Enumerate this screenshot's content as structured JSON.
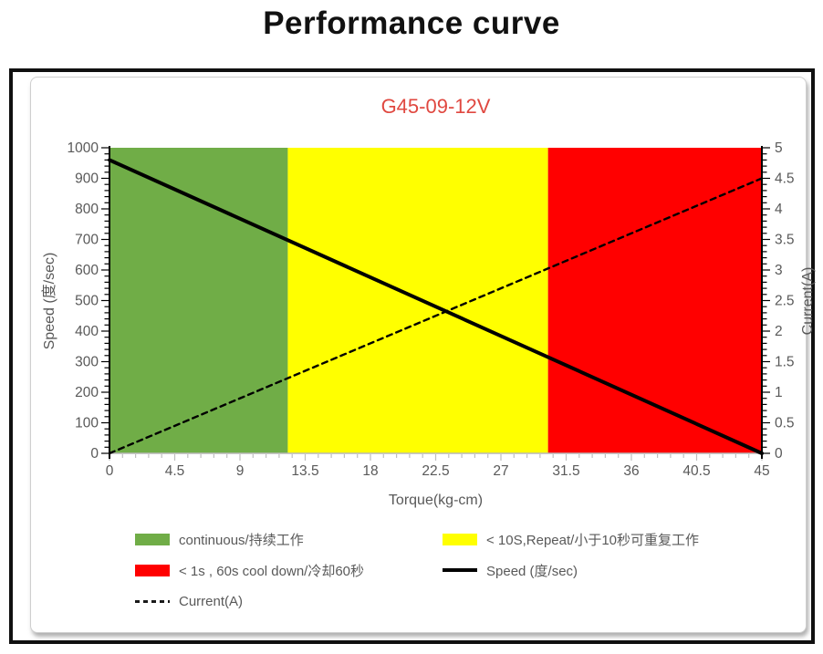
{
  "page_title": "Performance curve",
  "chart": {
    "title": "G45-09-12V",
    "title_color": "#e04840"
  },
  "chart_data": {
    "type": "line",
    "title": "G45-09-12V",
    "x_axis": {
      "label": "Torque(kg-cm)",
      "min": 0,
      "max": 45,
      "major_tick": 4.5,
      "minor_tick": 0.9,
      "tick_labels": [
        "0",
        "4.5",
        "9",
        "13.5",
        "18",
        "22.5",
        "27",
        "31.5",
        "36",
        "40.5",
        "45"
      ]
    },
    "y_axis_left": {
      "label": "Speed (度/sec)",
      "min": 0,
      "max": 1000,
      "major_tick": 100,
      "minor_tick": 20,
      "tick_labels": [
        "0",
        "100",
        "200",
        "300",
        "400",
        "500",
        "600",
        "700",
        "800",
        "900",
        "1000"
      ]
    },
    "y_axis_right": {
      "label": "Current(A)",
      "min": 0,
      "max": 5,
      "major_tick": 0.5,
      "minor_tick": 0.1,
      "tick_labels": [
        "0",
        "0.5",
        "1",
        "1.5",
        "2",
        "2.5",
        "3",
        "3.5",
        "4",
        "4.5",
        "5"
      ]
    },
    "zones": [
      {
        "name": "continuous",
        "color": "#70ad47",
        "x_start": 0,
        "x_end": 12.3
      },
      {
        "name": "repeat-under-10s",
        "color": "#ffff00",
        "x_start": 12.3,
        "x_end": 30.25
      },
      {
        "name": "under-1s-cooldown",
        "color": "#ff0000",
        "x_start": 30.25,
        "x_end": 45
      }
    ],
    "series": [
      {
        "name": "Speed (度/sec)",
        "axis": "left",
        "style": "solid",
        "color": "#000000",
        "points": [
          [
            0,
            960
          ],
          [
            45,
            0
          ]
        ]
      },
      {
        "name": "Current(A)",
        "axis": "right",
        "style": "dashed",
        "color": "#000000",
        "points": [
          [
            0,
            0
          ],
          [
            45,
            4.5
          ]
        ]
      }
    ],
    "legend": [
      {
        "swatch": "rect",
        "color": "#70ad47",
        "label": "continuous/持续工作"
      },
      {
        "swatch": "rect",
        "color": "#ffff00",
        "label": "< 10S,Repeat/小于10秒可重复工作"
      },
      {
        "swatch": "rect",
        "color": "#ff0000",
        "label": "< 1s , 60s cool down/冷却60秒"
      },
      {
        "swatch": "line-solid",
        "color": "#000000",
        "label": "Speed (度/sec)"
      },
      {
        "swatch": "line-dashed",
        "color": "#000000",
        "label": "Current(A)"
      }
    ],
    "legend_position": "bottom",
    "grid": false
  }
}
